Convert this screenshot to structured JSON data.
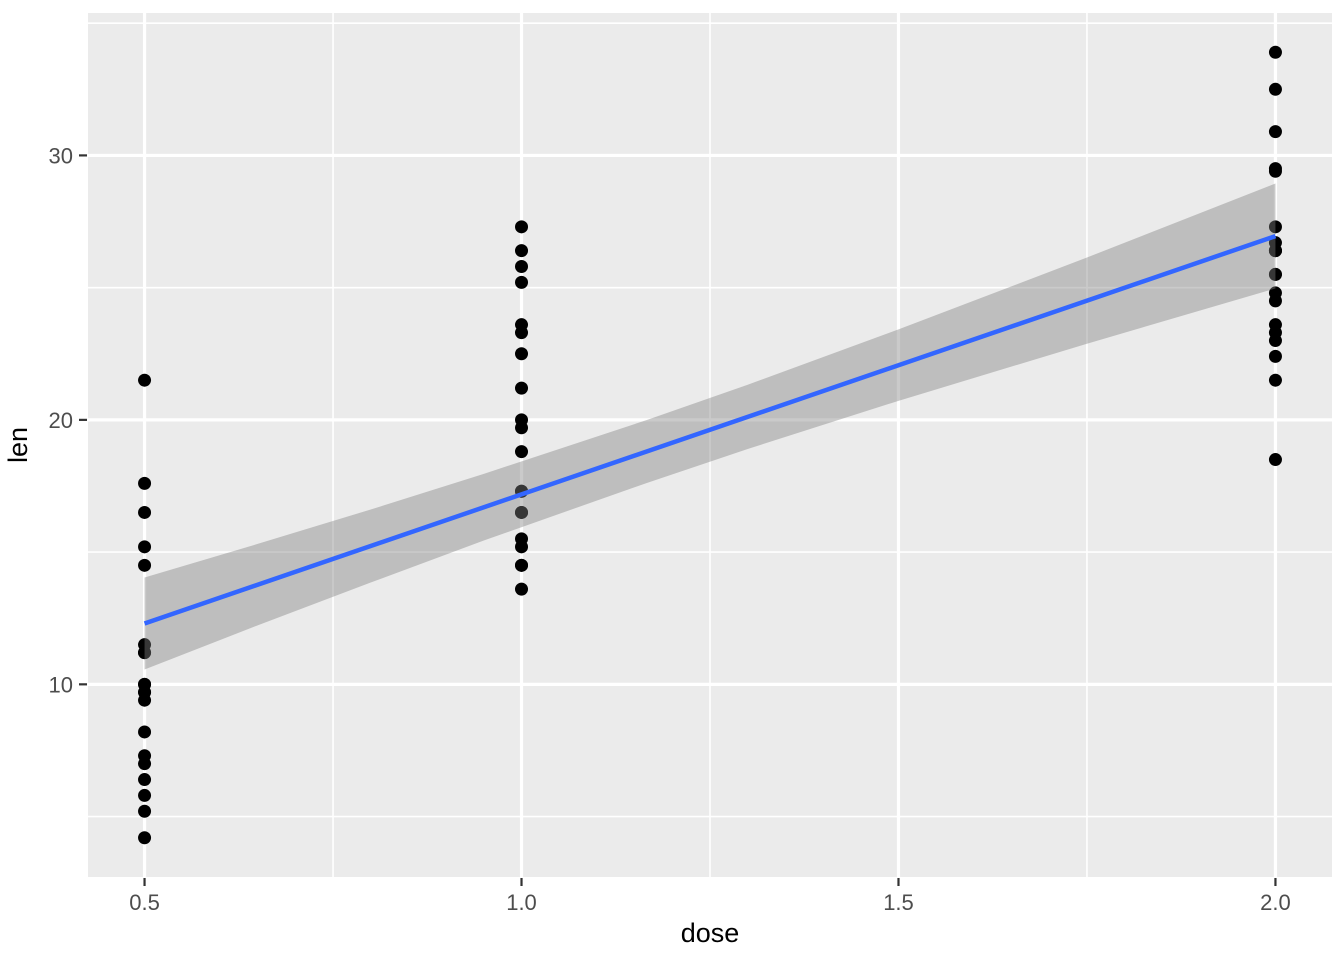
{
  "figure": {
    "kind": "ggplot-scatter-with-lm-smooth"
  },
  "chart_data": {
    "type": "scatter",
    "title": "",
    "xlabel": "dose",
    "ylabel": "len",
    "x_ticks": [
      0.5,
      1.0,
      1.5,
      2.0
    ],
    "x_tick_labels": [
      "0.5",
      "1.0",
      "1.5",
      "2.0"
    ],
    "y_ticks": [
      10,
      20,
      30
    ],
    "y_tick_labels": [
      "10",
      "20",
      "30"
    ],
    "x_minor_ticks": [
      0.75,
      1.25,
      1.75
    ],
    "y_minor_ticks": [
      5,
      15,
      25,
      35
    ],
    "xlim": [
      0.425,
      2.075
    ],
    "ylim": [
      2.715,
      35.385
    ],
    "grid": true,
    "legend_position": "none",
    "points": [
      {
        "x": 0.5,
        "y": 4.2
      },
      {
        "x": 0.5,
        "y": 11.5
      },
      {
        "x": 0.5,
        "y": 7.3
      },
      {
        "x": 0.5,
        "y": 5.8
      },
      {
        "x": 0.5,
        "y": 6.4
      },
      {
        "x": 0.5,
        "y": 10.0
      },
      {
        "x": 0.5,
        "y": 11.2
      },
      {
        "x": 0.5,
        "y": 11.2
      },
      {
        "x": 0.5,
        "y": 5.2
      },
      {
        "x": 0.5,
        "y": 7.0
      },
      {
        "x": 0.5,
        "y": 15.2
      },
      {
        "x": 0.5,
        "y": 21.5
      },
      {
        "x": 0.5,
        "y": 17.6
      },
      {
        "x": 0.5,
        "y": 9.7
      },
      {
        "x": 0.5,
        "y": 14.5
      },
      {
        "x": 0.5,
        "y": 10.0
      },
      {
        "x": 0.5,
        "y": 8.2
      },
      {
        "x": 0.5,
        "y": 9.4
      },
      {
        "x": 0.5,
        "y": 16.5
      },
      {
        "x": 0.5,
        "y": 9.7
      },
      {
        "x": 1.0,
        "y": 16.5
      },
      {
        "x": 1.0,
        "y": 16.5
      },
      {
        "x": 1.0,
        "y": 15.2
      },
      {
        "x": 1.0,
        "y": 17.3
      },
      {
        "x": 1.0,
        "y": 22.5
      },
      {
        "x": 1.0,
        "y": 17.3
      },
      {
        "x": 1.0,
        "y": 13.6
      },
      {
        "x": 1.0,
        "y": 14.5
      },
      {
        "x": 1.0,
        "y": 18.8
      },
      {
        "x": 1.0,
        "y": 15.5
      },
      {
        "x": 1.0,
        "y": 19.7
      },
      {
        "x": 1.0,
        "y": 23.3
      },
      {
        "x": 1.0,
        "y": 23.6
      },
      {
        "x": 1.0,
        "y": 26.4
      },
      {
        "x": 1.0,
        "y": 20.0
      },
      {
        "x": 1.0,
        "y": 25.2
      },
      {
        "x": 1.0,
        "y": 25.8
      },
      {
        "x": 1.0,
        "y": 21.2
      },
      {
        "x": 1.0,
        "y": 14.5
      },
      {
        "x": 1.0,
        "y": 27.3
      },
      {
        "x": 2.0,
        "y": 23.6
      },
      {
        "x": 2.0,
        "y": 18.5
      },
      {
        "x": 2.0,
        "y": 33.9
      },
      {
        "x": 2.0,
        "y": 25.5
      },
      {
        "x": 2.0,
        "y": 26.4
      },
      {
        "x": 2.0,
        "y": 32.5
      },
      {
        "x": 2.0,
        "y": 26.7
      },
      {
        "x": 2.0,
        "y": 21.5
      },
      {
        "x": 2.0,
        "y": 23.3
      },
      {
        "x": 2.0,
        "y": 29.5
      },
      {
        "x": 2.0,
        "y": 25.5
      },
      {
        "x": 2.0,
        "y": 26.4
      },
      {
        "x": 2.0,
        "y": 22.4
      },
      {
        "x": 2.0,
        "y": 24.5
      },
      {
        "x": 2.0,
        "y": 24.8
      },
      {
        "x": 2.0,
        "y": 30.9
      },
      {
        "x": 2.0,
        "y": 26.4
      },
      {
        "x": 2.0,
        "y": 27.3
      },
      {
        "x": 2.0,
        "y": 29.4
      },
      {
        "x": 2.0,
        "y": 23.0
      }
    ],
    "smooth": {
      "method": "lm",
      "line": {
        "x": [
          0.5,
          2.0
        ],
        "y": [
          12.3,
          26.95
        ]
      },
      "ci_band": {
        "x": [
          0.5,
          0.65,
          0.8,
          0.95,
          1.1667,
          1.3,
          1.5,
          1.75,
          2.0
        ],
        "upper": [
          14.04,
          15.31,
          16.61,
          17.96,
          20.0,
          21.33,
          23.42,
          26.14,
          28.94
        ],
        "lower": [
          10.56,
          12.23,
          13.85,
          15.44,
          17.62,
          18.9,
          20.72,
          22.88,
          24.97
        ]
      }
    },
    "colors": {
      "background": "#FFFFFF",
      "panel": "#EBEBEB",
      "grid": "#FFFFFF",
      "point": "#000000",
      "smooth_line": "#3366FF",
      "ci_band": "rgba(128,128,128,0.42)",
      "tick_mark": "#333333",
      "tick_label": "#4D4D4D",
      "axis_title": "#000000"
    }
  }
}
